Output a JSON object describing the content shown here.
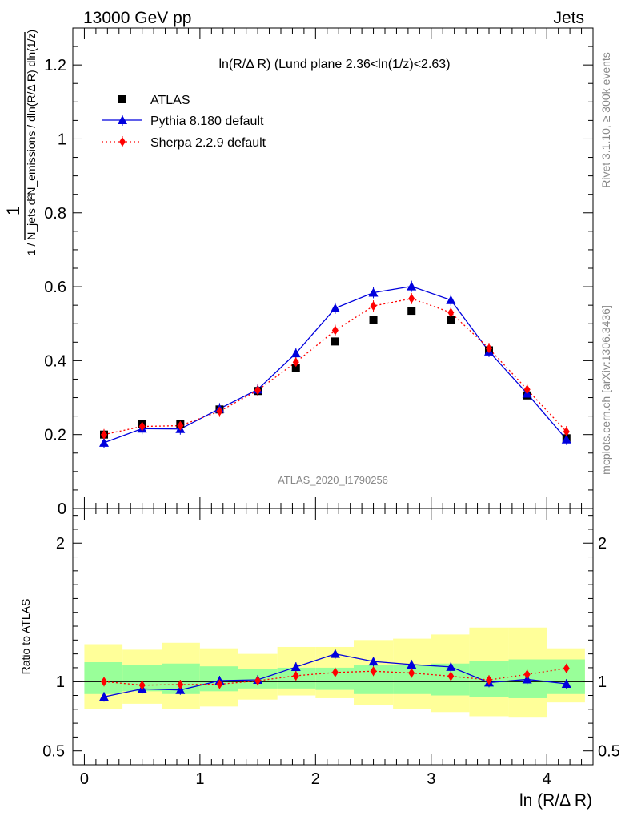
{
  "header": {
    "energy_label": "13000 GeV pp",
    "process_label": "Jets"
  },
  "side_labels": {
    "rivet": "Rivet 3.1.10, ≥ 300k events",
    "mcplots": "mcplots.cern.ch [arXiv:1306.3436]"
  },
  "watermark": "ATLAS_2020_I1790256",
  "colors": {
    "atlas": "#000000",
    "pythia": "#0000dd",
    "sherpa": "#ff0000",
    "band_inner": "#99ff99",
    "band_outer": "#ffff99"
  },
  "chart_data": [
    {
      "type": "scatter",
      "title": "ln(R/Δ R) (Lund plane 2.36<ln(1/z)<2.63)",
      "ylabel": "1 / N_jets d²N_emissions / dln(R/Δ R) dln(1/z)",
      "ylim": [
        0,
        1.3
      ],
      "y_ticks": [
        "0",
        "0.2",
        "0.4",
        "0.6",
        "0.8",
        "1",
        "1.2"
      ],
      "xlim": [
        -0.1,
        4.4
      ],
      "legend_position": "top-left",
      "x": [
        0.17,
        0.5,
        0.83,
        1.17,
        1.5,
        1.83,
        2.17,
        2.5,
        2.83,
        3.17,
        3.5,
        3.83,
        4.17
      ],
      "series": [
        {
          "name": "ATLAS",
          "marker": "square",
          "values": [
            0.2,
            0.228,
            0.229,
            0.268,
            0.318,
            0.38,
            0.452,
            0.51,
            0.535,
            0.51,
            0.428,
            0.306,
            0.19
          ]
        },
        {
          "name": "Pythia 8.180 default",
          "marker": "triangle",
          "values": [
            0.178,
            0.216,
            0.215,
            0.27,
            0.322,
            0.42,
            0.542,
            0.584,
            0.601,
            0.564,
            0.425,
            0.311,
            0.187
          ]
        },
        {
          "name": "Sherpa 2.2.9 default",
          "marker": "diamond",
          "values": [
            0.2,
            0.222,
            0.224,
            0.263,
            0.32,
            0.396,
            0.482,
            0.548,
            0.568,
            0.53,
            0.433,
            0.322,
            0.208
          ]
        }
      ]
    },
    {
      "type": "line",
      "ylabel": "Ratio to ATLAS",
      "xlabel": "ln (R/Δ R)",
      "ylim": [
        0.4,
        2.25
      ],
      "y_ticks": [
        "0.5",
        "1",
        "2"
      ],
      "xlim": [
        -0.1,
        4.4
      ],
      "x_ticks": [
        "0",
        "1",
        "2",
        "3",
        "4"
      ],
      "bin_edges": [
        0.0,
        0.33,
        0.67,
        1.0,
        1.33,
        1.67,
        2.0,
        2.33,
        2.67,
        3.0,
        3.33,
        3.67,
        4.0,
        4.33
      ],
      "x": [
        0.17,
        0.5,
        0.83,
        1.17,
        1.5,
        1.83,
        2.17,
        2.5,
        2.83,
        3.17,
        3.5,
        3.83,
        4.17
      ],
      "band_inner": {
        "low": [
          0.91,
          0.93,
          0.91,
          0.93,
          0.95,
          0.95,
          0.94,
          0.91,
          0.91,
          0.9,
          0.89,
          0.88,
          0.91
        ],
        "high": [
          1.14,
          1.12,
          1.13,
          1.11,
          1.09,
          1.1,
          1.1,
          1.12,
          1.12,
          1.13,
          1.15,
          1.16,
          1.16
        ]
      },
      "band_outer": {
        "low": [
          0.8,
          0.84,
          0.8,
          0.82,
          0.87,
          0.9,
          0.88,
          0.83,
          0.8,
          0.78,
          0.75,
          0.74,
          0.85
        ]
      },
      "band_outer_high": [
        1.27,
        1.23,
        1.28,
        1.24,
        1.2,
        1.25,
        1.25,
        1.3,
        1.31,
        1.34,
        1.39,
        1.39,
        1.24
      ],
      "series": [
        {
          "name": "Pythia 8.180 default",
          "values": [
            0.89,
            0.947,
            0.939,
            1.007,
            1.013,
            1.105,
            1.2,
            1.145,
            1.123,
            1.106,
            0.993,
            1.016,
            0.984
          ]
        },
        {
          "name": "Sherpa 2.2.9 default",
          "values": [
            1.0,
            0.974,
            0.978,
            0.981,
            1.006,
            1.042,
            1.066,
            1.075,
            1.062,
            1.039,
            1.012,
            1.052,
            1.095
          ]
        }
      ]
    }
  ]
}
